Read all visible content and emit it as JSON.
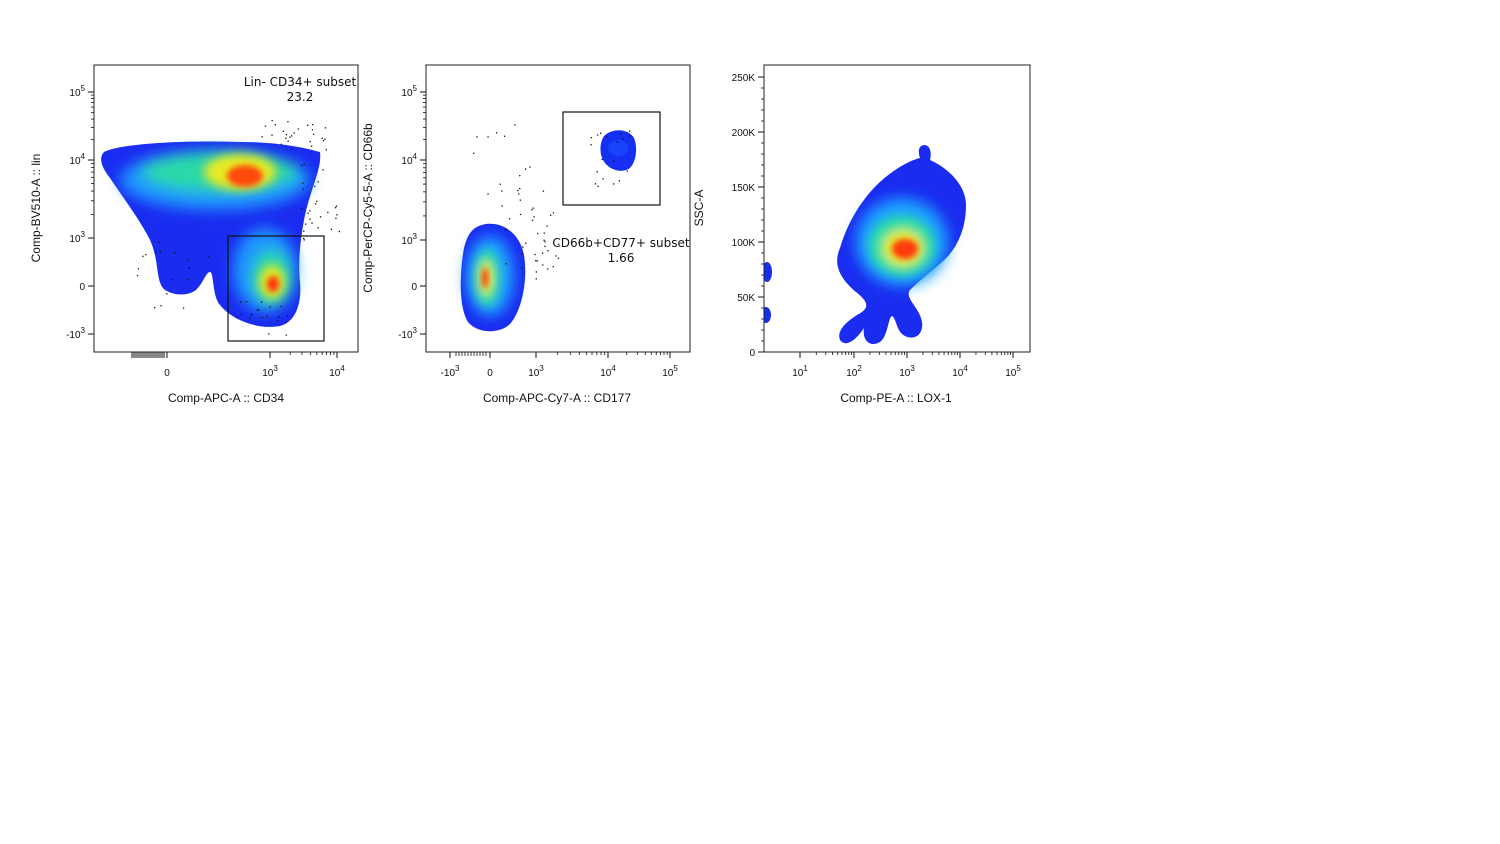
{
  "chart_data": [
    {
      "type": "scatter",
      "xlabel": "Comp-APC-A :: CD34",
      "ylabel": "Comp-BV510-A :: lin",
      "x_ticks": [
        {
          "label": "0",
          "value": "0"
        },
        {
          "label": "10^3",
          "value": "1000"
        },
        {
          "label": "10^4",
          "value": "10000"
        }
      ],
      "y_ticks": [
        {
          "label": "10^5",
          "value": "100000"
        },
        {
          "label": "10^4",
          "value": "10000"
        },
        {
          "label": "10^3",
          "value": "1000"
        },
        {
          "label": "0",
          "value": "0"
        },
        {
          "label": "-10^3",
          "value": "-1000"
        }
      ],
      "gates": [
        {
          "name": "Lin- CD34+ subset",
          "value": "23.2"
        }
      ],
      "populations": [
        {
          "x": 500,
          "y": 6000,
          "density": "high"
        },
        {
          "x": 1300,
          "y": 0,
          "density": "high"
        }
      ]
    },
    {
      "type": "scatter",
      "xlabel": "Comp-APC-Cy7-A :: CD177",
      "ylabel": "Comp-PerCP-Cy5-5-A :: CD66b",
      "x_ticks": [
        {
          "label": "-10^3",
          "value": "-1000"
        },
        {
          "label": "0",
          "value": "0"
        },
        {
          "label": "10^3",
          "value": "1000"
        },
        {
          "label": "10^4",
          "value": "10000"
        },
        {
          "label": "10^5",
          "value": "100000"
        }
      ],
      "y_ticks": [
        {
          "label": "10^5",
          "value": "100000"
        },
        {
          "label": "10^4",
          "value": "10000"
        },
        {
          "label": "10^3",
          "value": "1000"
        },
        {
          "label": "0",
          "value": "0"
        },
        {
          "label": "-10^3",
          "value": "-1000"
        }
      ],
      "gates": [
        {
          "name": "CD66b+CD77+ subset",
          "value": "1.66"
        }
      ],
      "populations": [
        {
          "x": 0,
          "y": 0,
          "density": "high"
        },
        {
          "x": 20000,
          "y": 15000,
          "density": "low"
        }
      ]
    },
    {
      "type": "scatter",
      "xlabel": "Comp-PE-A :: LOX-1",
      "ylabel": "SSC-A",
      "x_ticks": [
        {
          "label": "10^1",
          "value": "10"
        },
        {
          "label": "10^2",
          "value": "100"
        },
        {
          "label": "10^3",
          "value": "1000"
        },
        {
          "label": "10^4",
          "value": "10000"
        },
        {
          "label": "10^5",
          "value": "100000"
        }
      ],
      "y_ticks": [
        {
          "label": "250K",
          "value": "250000"
        },
        {
          "label": "200K",
          "value": "200000"
        },
        {
          "label": "150K",
          "value": "150000"
        },
        {
          "label": "100K",
          "value": "100000"
        },
        {
          "label": "50K",
          "value": "50000"
        },
        {
          "label": "0",
          "value": "0"
        }
      ],
      "gates": [],
      "populations": [
        {
          "x": 1000,
          "y": 95000,
          "density": "high"
        }
      ]
    }
  ]
}
